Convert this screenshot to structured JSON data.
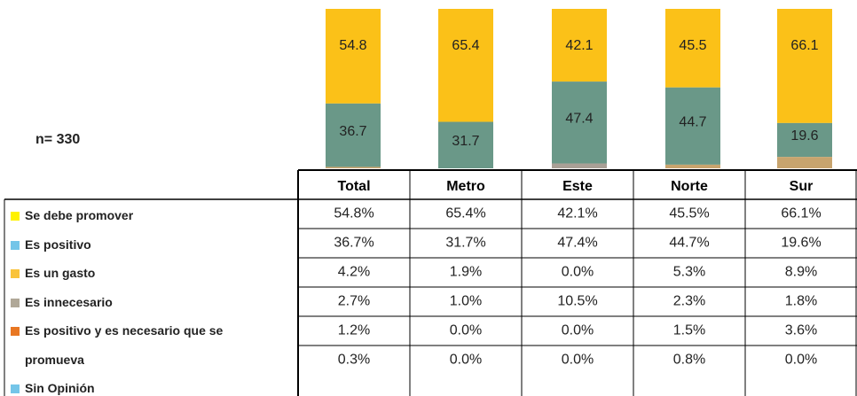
{
  "chart_data": {
    "type": "stacked_bar_table",
    "annotation": "n= 330",
    "categories": [
      "Total",
      "Metro",
      "Este",
      "Norte",
      "Sur"
    ],
    "series": [
      {
        "name": "Se debe promover",
        "color": "#FFF200",
        "bar_color": "#FBC118",
        "values": [
          54.8,
          65.4,
          42.1,
          45.5,
          66.1
        ],
        "value_labels": [
          "54.8%",
          "65.4%",
          "42.1%",
          "45.5%",
          "66.1%"
        ]
      },
      {
        "name": "Es positivo",
        "color": "#74C5E8",
        "bar_color": "#6A9888",
        "values": [
          36.7,
          31.7,
          47.4,
          44.7,
          19.6
        ],
        "value_labels": [
          "36.7%",
          "31.7%",
          "47.4%",
          "44.7%",
          "19.6%"
        ]
      },
      {
        "name": "Es un gasto",
        "color": "#F9C33B",
        "bar_color": "#C8A46E",
        "values": [
          4.2,
          1.9,
          0.0,
          5.3,
          8.9
        ],
        "value_labels": [
          "4.2%",
          "1.9%",
          "0.0%",
          "5.3%",
          "8.9%"
        ]
      },
      {
        "name": "Es innecesario",
        "color": "#B0A898",
        "bar_color": "#A9A096",
        "values": [
          2.7,
          1.0,
          10.5,
          2.3,
          1.8
        ],
        "value_labels": [
          "2.7%",
          "1.0%",
          "10.5%",
          "2.3%",
          "1.8%"
        ]
      },
      {
        "name": "Es positivo y es necesario que se promueva",
        "color": "#E87722",
        "bar_color": "#E08A2E",
        "values": [
          1.2,
          0.0,
          0.0,
          1.5,
          3.6
        ],
        "value_labels": [
          "1.2%",
          "0.0%",
          "0.0%",
          "1.5%",
          "3.6%"
        ]
      },
      {
        "name": "Sin Opinión",
        "color": "#74C5E8",
        "bar_color": "#8FC9E0",
        "values": [
          0.3,
          0.0,
          0.0,
          0.8,
          0.0
        ],
        "value_labels": [
          "0.3%",
          "0.0%",
          "0.0%",
          "0.8%",
          "0.0%"
        ]
      }
    ]
  }
}
